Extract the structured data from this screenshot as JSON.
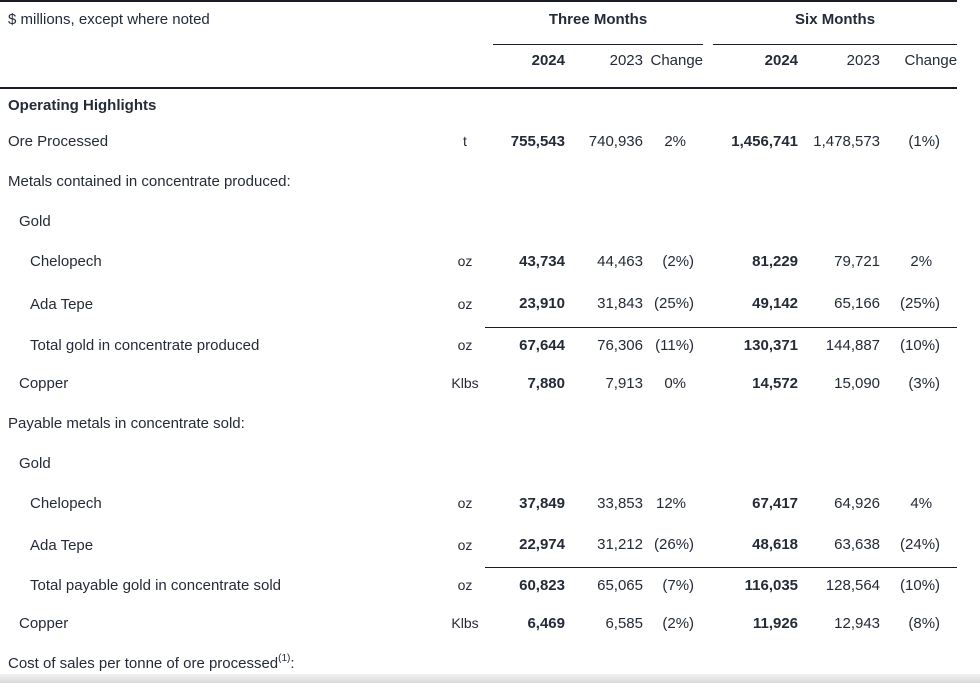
{
  "document": {
    "note": "$ millions, except where noted",
    "header": {
      "groups": [
        "Three Months",
        "Six Months"
      ],
      "columns": [
        "2024",
        "2023",
        "Change"
      ]
    },
    "rows": [
      {
        "label": "Operating Highlights",
        "indent": 0,
        "bold": true
      },
      {
        "label": "Ore Processed",
        "indent": 0,
        "unit": "t",
        "values": [
          "755,543",
          "740,936",
          "2%",
          "1,456,741",
          "1,478,573",
          "(1%)"
        ]
      },
      {
        "label": "Metals contained in concentrate produced:",
        "indent": 0
      },
      {
        "label": "Gold",
        "indent": 1
      },
      {
        "label": "Chelopech",
        "indent": 2,
        "unit": "oz",
        "values": [
          "43,734",
          "44,463",
          "(2%)",
          "81,229",
          "79,721",
          "2%"
        ]
      },
      {
        "label": "Ada Tepe",
        "indent": 2,
        "unit": "oz",
        "values": [
          "23,910",
          "31,843",
          "(25%)",
          "49,142",
          "65,166",
          "(25%)"
        ]
      },
      {
        "label": "Total gold in concentrate produced",
        "indent": 2,
        "unit": "oz",
        "total_rule": true,
        "values": [
          "67,644",
          "76,306",
          "(11%)",
          "130,371",
          "144,887",
          "(10%)"
        ]
      },
      {
        "label": "Copper",
        "indent": 1,
        "unit": "Klbs",
        "values": [
          "7,880",
          "7,913",
          "0%",
          "14,572",
          "15,090",
          "(3%)"
        ]
      },
      {
        "label": "Payable metals in concentrate sold:",
        "indent": 0
      },
      {
        "label": "Gold",
        "indent": 1
      },
      {
        "label": "Chelopech",
        "indent": 2,
        "unit": "oz",
        "values": [
          "37,849",
          "33,853",
          "12%",
          "67,417",
          "64,926",
          "4%"
        ]
      },
      {
        "label": "Ada Tepe",
        "indent": 2,
        "unit": "oz",
        "values": [
          "22,974",
          "31,212",
          "(26%)",
          "48,618",
          "63,638",
          "(24%)"
        ]
      },
      {
        "label": "Total payable gold in concentrate sold",
        "indent": 2,
        "unit": "oz",
        "total_rule": true,
        "values": [
          "60,823",
          "65,065",
          "(7%)",
          "116,035",
          "128,564",
          "(10%)"
        ]
      },
      {
        "label": "Copper",
        "indent": 1,
        "unit": "Klbs",
        "values": [
          "6,469",
          "6,585",
          "(2%)",
          "11,926",
          "12,943",
          "(8%)"
        ]
      },
      {
        "label": "Cost of sales per tonne of ore processed",
        "label_sup": "(1)",
        "label_suffix": ":",
        "indent": 0
      }
    ],
    "colors": {
      "text": "#242a37",
      "rule": "#1a1d24",
      "page_edge": "#dddddd"
    }
  }
}
